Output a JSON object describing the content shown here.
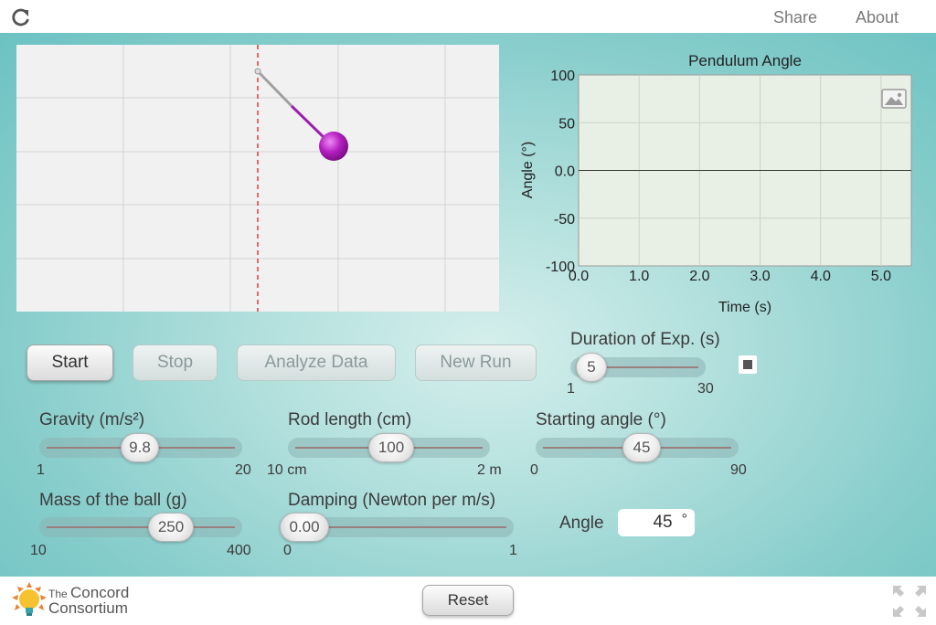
{
  "header": {
    "share_label": "Share",
    "about_label": "About"
  },
  "graph": {
    "chart_data": {
      "type": "line",
      "title": "Pendulum Angle",
      "xlabel": "Time (s)",
      "ylabel": "Angle (°)",
      "x_ticks": [
        "0.0",
        "1.0",
        "2.0",
        "3.0",
        "4.0",
        "5.0"
      ],
      "y_ticks": [
        "100",
        "50",
        "0.0",
        "-50",
        "-100"
      ],
      "xlim": [
        0,
        5.5
      ],
      "ylim": [
        -100,
        100
      ],
      "series": [],
      "grid": true
    }
  },
  "controls": {
    "start_label": "Start",
    "stop_label": "Stop",
    "analyze_label": "Analyze Data",
    "newrun_label": "New Run",
    "duration": {
      "label": "Duration of Exp. (s)",
      "value": "5",
      "min": "1",
      "max": "30"
    },
    "gravity": {
      "label": "Gravity (m/s²)",
      "value": "9.8",
      "min": "1",
      "max": "20"
    },
    "rod": {
      "label": "Rod length (cm)",
      "value": "100",
      "min": "10 cm",
      "max": "2 m"
    },
    "start_angle": {
      "label": "Starting angle (°)",
      "value": "45",
      "min": "0",
      "max": "90"
    },
    "mass": {
      "label": "Mass of the ball (g)",
      "value": "250",
      "min": "10",
      "max": "400"
    },
    "damping": {
      "label": "Damping (Newton per m/s)",
      "value": "0.00",
      "min": "0",
      "max": "1"
    },
    "angle_label": "Angle",
    "angle_value": "45",
    "angle_unit": "°"
  },
  "footer": {
    "logo_line1_small": "The",
    "logo_line1_big": "Concord",
    "logo_line2": "Consortium",
    "reset_label": "Reset"
  },
  "colors": {
    "pendulum_bob": "#b51fc2",
    "axis_line": "#333333",
    "plot_bg": "#e8f0e6"
  }
}
